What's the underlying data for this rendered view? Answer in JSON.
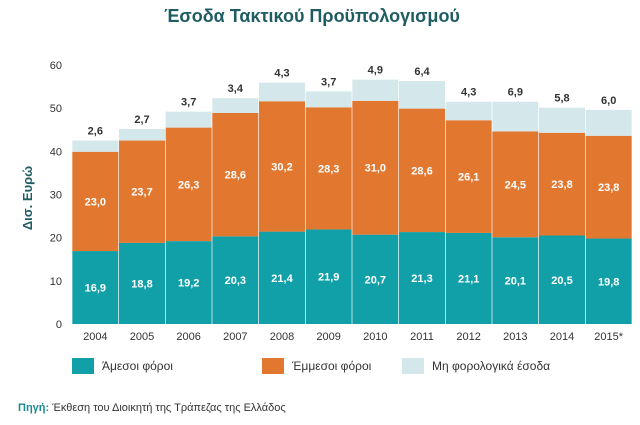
{
  "chart_data": {
    "type": "bar",
    "stacked": true,
    "title": "Έσοδα Τακτικού Προϋπολογισμού",
    "ylabel": "Δισ. Ευρώ",
    "ylim": [
      0,
      60
    ],
    "yticks": [
      0,
      10,
      20,
      30,
      40,
      50,
      60
    ],
    "grid": false,
    "legend_position": "bottom",
    "categories": [
      "2004",
      "2005",
      "2006",
      "2007",
      "2008",
      "2009",
      "2010",
      "2011",
      "2012",
      "2013",
      "2014",
      "2015*"
    ],
    "series": [
      {
        "name": "Άμεσοι φόροι",
        "color": "#12a0a8",
        "values": [
          16.9,
          18.8,
          19.2,
          20.3,
          21.4,
          21.9,
          20.7,
          21.3,
          21.1,
          20.1,
          20.5,
          19.8
        ],
        "labels": [
          "16,9",
          "18,8",
          "19,2",
          "20,3",
          "21,4",
          "21,9",
          "20,7",
          "21,3",
          "21,1",
          "20,1",
          "20,5",
          "19,8"
        ]
      },
      {
        "name": "Έμμεσοι φόροι",
        "color": "#e2772f",
        "values": [
          23.0,
          23.7,
          26.3,
          28.6,
          30.2,
          28.3,
          31.0,
          28.6,
          26.1,
          24.5,
          23.8,
          23.8
        ],
        "labels": [
          "23,0",
          "23,7",
          "26,3",
          "28,6",
          "30,2",
          "28,3",
          "31,0",
          "28,6",
          "26,1",
          "24,5",
          "23,8",
          "23,8"
        ]
      },
      {
        "name": "Μη φορολογικά έσοδα",
        "color": "#d4e8ec",
        "values": [
          2.6,
          2.7,
          3.7,
          3.4,
          4.3,
          3.7,
          4.9,
          6.4,
          4.3,
          6.9,
          5.8,
          6.0
        ],
        "labels": [
          "2,6",
          "2,7",
          "3,7",
          "3,4",
          "4,3",
          "3,7",
          "4,9",
          "6,4",
          "4,3",
          "6,9",
          "5,8",
          "6,0"
        ]
      }
    ]
  },
  "source": {
    "label": "Πηγή:",
    "text": "Έκθεση του Διοικητή της Τράπεζας της Ελλάδος"
  }
}
